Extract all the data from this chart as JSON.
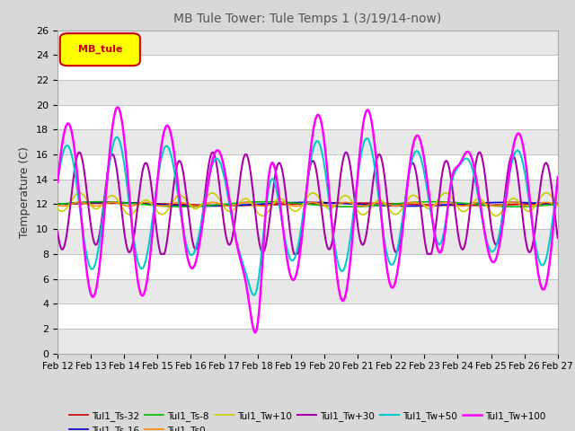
{
  "title": "MB Tule Tower: Tule Temps 1 (3/19/14-now)",
  "ylabel": "Temperature (C)",
  "legend_box_text": "MB_tule",
  "legend_box_color": "#ffff00",
  "legend_box_border": "#cc0000",
  "ylim": [
    0,
    26
  ],
  "yticks": [
    0,
    2,
    4,
    6,
    8,
    10,
    12,
    14,
    16,
    18,
    20,
    22,
    24,
    26
  ],
  "xtick_labels": [
    "Feb 12",
    "Feb 13",
    "Feb 14",
    "Feb 15",
    "Feb 16",
    "Feb 17",
    "Feb 18",
    "Feb 19",
    "Feb 20",
    "Feb 21",
    "Feb 22",
    "Feb 23",
    "Feb 24",
    "Feb 25",
    "Feb 26",
    "Feb 27"
  ],
  "series_order": [
    "Tul1_Ts-32",
    "Tul1_Ts-16",
    "Tul1_Ts-8",
    "Tul1_Ts0",
    "Tul1_Tw+10",
    "Tul1_Tw+30",
    "Tul1_Tw+50",
    "Tul1_Tw+100"
  ],
  "series": {
    "Tul1_Ts-32": {
      "color": "#cc0000",
      "lw": 1.2
    },
    "Tul1_Ts-16": {
      "color": "#0000cc",
      "lw": 1.2
    },
    "Tul1_Ts-8": {
      "color": "#00bb00",
      "lw": 1.2
    },
    "Tul1_Ts0": {
      "color": "#ff8800",
      "lw": 1.2
    },
    "Tul1_Tw+10": {
      "color": "#cccc00",
      "lw": 1.2
    },
    "Tul1_Tw+30": {
      "color": "#aa00aa",
      "lw": 1.5
    },
    "Tul1_Tw+50": {
      "color": "#00cccc",
      "lw": 1.5
    },
    "Tul1_Tw+100": {
      "color": "#ff00ff",
      "lw": 1.8
    }
  },
  "bg_color": "#d8d8d8",
  "plot_bg_color": "#ffffff",
  "grid_color": "#bbbbbb",
  "alt_band_color": "#e8e8e8"
}
